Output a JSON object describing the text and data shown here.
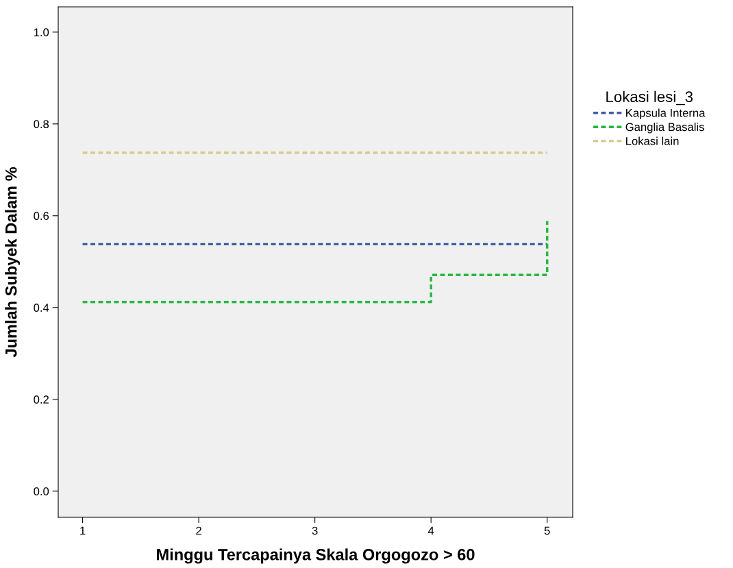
{
  "chart_data": {
    "type": "step",
    "xlabel": "Minggu Tercapainya Skala Orgogozo > 60",
    "ylabel": "Jumlah Subyek Dalam %",
    "legend_title": "Lokasi lesi_3",
    "series": [
      {
        "name": "Kapsula Interna",
        "color": "#3f5aa8",
        "x": [
          1,
          5
        ],
        "values": [
          0.538,
          0.538
        ]
      },
      {
        "name": "Ganglia Basalis",
        "color": "#21bb3c",
        "x": [
          1,
          4,
          5
        ],
        "values": [
          0.412,
          0.471,
          0.588
        ]
      },
      {
        "name": "Lokasi lain",
        "color": "#d4cc8f",
        "x": [
          1,
          5
        ],
        "values": [
          0.737,
          0.737
        ]
      }
    ],
    "xlim": [
      0.79,
      5.22
    ],
    "ylim": [
      -0.057,
      1.055
    ],
    "xticks": [
      1,
      2,
      3,
      4,
      5
    ],
    "yticks": [
      {
        "value": 0,
        "label": "0.0"
      },
      {
        "value": 0.2,
        "label": "0.2"
      },
      {
        "value": 0.4,
        "label": "0.4"
      },
      {
        "value": 0.6,
        "label": "0.6"
      },
      {
        "value": 0.8,
        "label": "0.8"
      },
      {
        "value": 1.0,
        "label": "1.0"
      }
    ],
    "grid": false,
    "legend": "right",
    "line_style": "dashed"
  }
}
